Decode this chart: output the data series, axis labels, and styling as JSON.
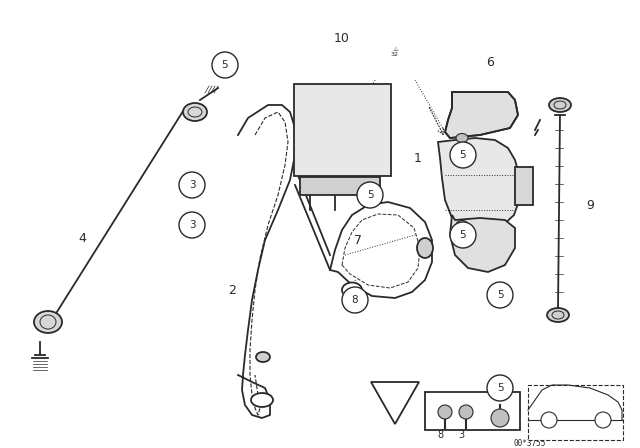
{
  "background_color": "#ffffff",
  "line_color": "#2a2a2a",
  "doc_number": "00*3755",
  "fig_width": 6.4,
  "fig_height": 4.48,
  "dpi": 100,
  "xlim": [
    0,
    640
  ],
  "ylim": [
    0,
    448
  ]
}
